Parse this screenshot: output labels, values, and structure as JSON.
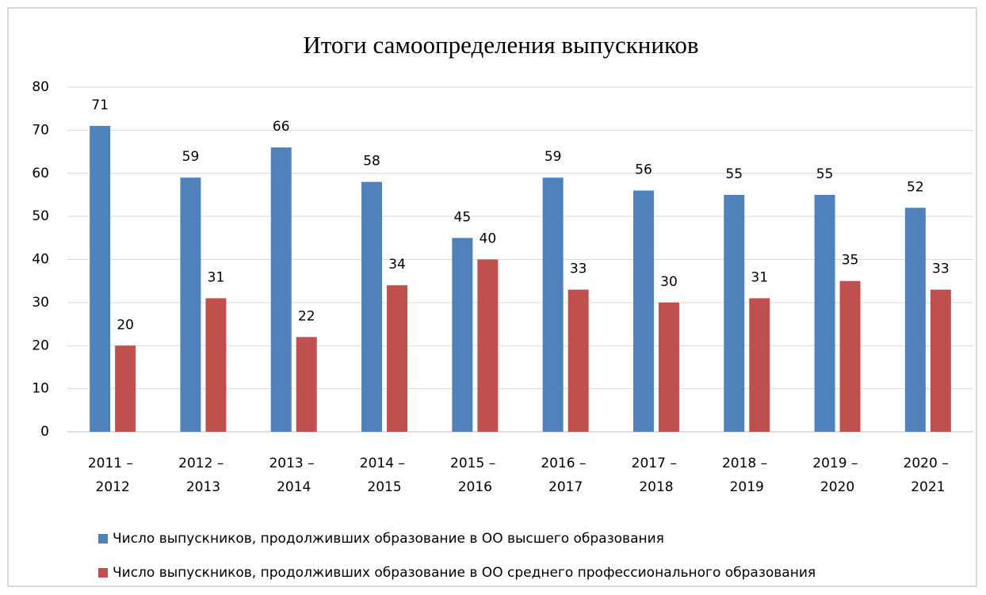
{
  "chart_data": {
    "type": "bar",
    "title": "Итоги самоопределения выпускников",
    "categories": [
      "2011 – 2012",
      "2012 – 2013",
      "2013 – 2014",
      "2014 – 2015",
      "2015 – 2016",
      "2016 – 2017",
      "2017 – 2018",
      "2018 – 2019",
      "2019 – 2020",
      "2020 – 2021"
    ],
    "series": [
      {
        "name": "Число выпускников, продолживших образование в ОО высшего образования",
        "color": "#4f81bd",
        "values": [
          71,
          59,
          66,
          58,
          45,
          59,
          56,
          55,
          55,
          52
        ]
      },
      {
        "name": "Число выпускников, продолживших образование в ОО среднего профессионального образования",
        "color": "#c0504d",
        "values": [
          20,
          31,
          22,
          34,
          40,
          33,
          30,
          31,
          35,
          33
        ]
      }
    ],
    "ylim": [
      0,
      80
    ],
    "yticks": [
      0,
      10,
      20,
      30,
      40,
      50,
      60,
      70,
      80
    ],
    "grid": true,
    "legend": "bottom"
  }
}
